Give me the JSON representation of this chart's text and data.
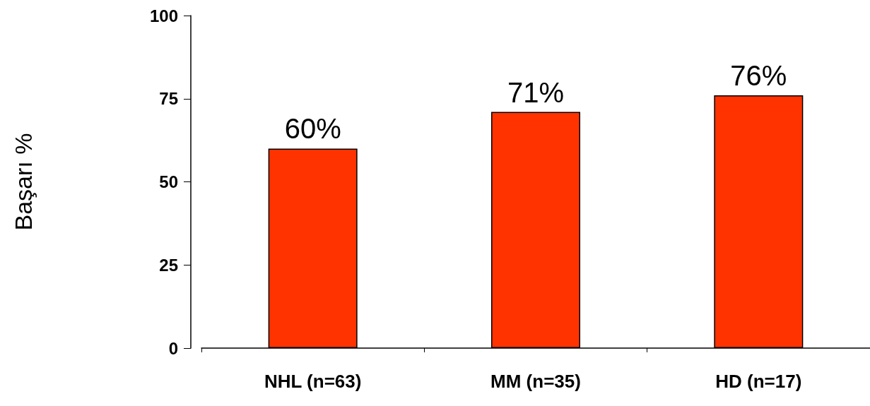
{
  "chart_data": {
    "type": "bar",
    "ylabel": "Başarı %",
    "categories": [
      "NHL (n=63)",
      "MM (n=35)",
      "HD (n=17)"
    ],
    "values": [
      60,
      71,
      76
    ],
    "color": "#ff3300",
    "data_labels": true,
    "value_labels": [
      "60%",
      "71%",
      "76%"
    ],
    "ylim": [
      0,
      100
    ],
    "yticks": [
      0,
      25,
      50,
      75,
      100
    ],
    "grid": false
  }
}
